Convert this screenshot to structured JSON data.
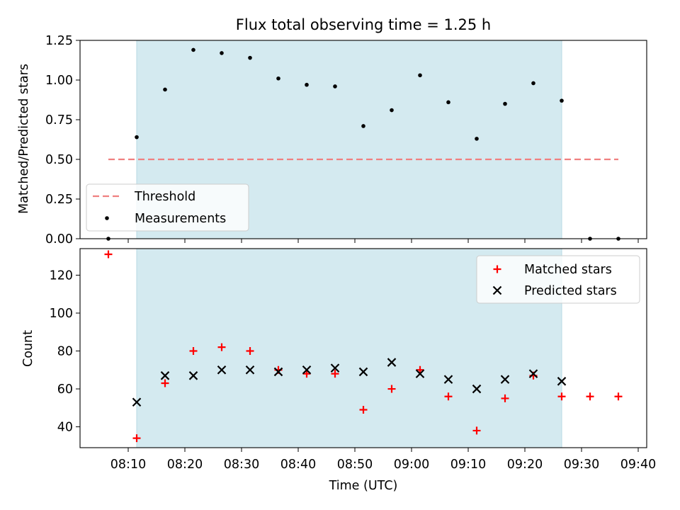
{
  "title": "Flux total observing time = 1.25 h",
  "colors": {
    "observing_span": "#d4eaf0",
    "threshold": "#f08080",
    "measurements": "#000000",
    "matched": "#ff0000",
    "predicted": "#000000"
  },
  "chart_data": [
    {
      "type": "scatter",
      "ylabel": "Matched/Predicted stars",
      "ylim": [
        0,
        1.25
      ],
      "yticks": [
        0,
        0.25,
        0.5,
        0.75,
        1.0,
        1.25
      ],
      "ytick_labels": [
        "0.00",
        "0.25",
        "0.50",
        "0.75",
        "1.00",
        "1.25"
      ],
      "xlim": [
        "08:01:30",
        "09:41:30"
      ],
      "shared_x": true,
      "shaded_span": [
        "08:11:30",
        "09:26:30"
      ],
      "legend_position": "lower-left",
      "threshold": {
        "name": "Threshold",
        "y": 0.5,
        "x": [
          "08:06:30",
          "09:36:30"
        ],
        "style": "dashed"
      },
      "series": [
        {
          "name": "Measurements",
          "marker": "dot",
          "x": [
            "08:06:30",
            "08:11:30",
            "08:16:30",
            "08:21:30",
            "08:26:30",
            "08:31:30",
            "08:36:30",
            "08:41:30",
            "08:46:30",
            "08:51:30",
            "08:56:30",
            "09:01:30",
            "09:06:30",
            "09:11:30",
            "09:16:30",
            "09:21:30",
            "09:26:30",
            "09:31:30",
            "09:36:30"
          ],
          "y": [
            0.0,
            0.64,
            0.94,
            1.19,
            1.17,
            1.14,
            1.01,
            0.97,
            0.96,
            0.71,
            0.81,
            1.03,
            0.86,
            0.63,
            0.85,
            0.98,
            0.87,
            0.0,
            0.0
          ]
        }
      ]
    },
    {
      "type": "scatter",
      "ylabel": "Count",
      "xlabel": "Time (UTC)",
      "ylim": [
        29,
        134
      ],
      "yticks": [
        40,
        60,
        80,
        100,
        120
      ],
      "ytick_labels": [
        "40",
        "60",
        "80",
        "100",
        "120"
      ],
      "xlim": [
        "08:01:30",
        "09:41:30"
      ],
      "xticks": [
        "08:10",
        "08:20",
        "08:30",
        "08:40",
        "08:50",
        "09:00",
        "09:10",
        "09:20",
        "09:30",
        "09:40"
      ],
      "shaded_span": [
        "08:11:30",
        "09:26:30"
      ],
      "legend_position": "upper-right",
      "series": [
        {
          "name": "Matched stars",
          "marker": "plus",
          "x": [
            "08:06:30",
            "08:11:30",
            "08:16:30",
            "08:21:30",
            "08:26:30",
            "08:31:30",
            "08:36:30",
            "08:41:30",
            "08:46:30",
            "08:51:30",
            "08:56:30",
            "09:01:30",
            "09:06:30",
            "09:11:30",
            "09:16:30",
            "09:21:30",
            "09:26:30",
            "09:31:30",
            "09:36:30"
          ],
          "y": [
            131,
            34,
            63,
            80,
            82,
            80,
            70,
            68,
            68,
            49,
            60,
            70,
            56,
            38,
            55,
            67,
            56,
            56,
            56
          ]
        },
        {
          "name": "Predicted stars",
          "marker": "x",
          "x": [
            "08:11:30",
            "08:16:30",
            "08:21:30",
            "08:26:30",
            "08:31:30",
            "08:36:30",
            "08:41:30",
            "08:46:30",
            "08:51:30",
            "08:56:30",
            "09:01:30",
            "09:06:30",
            "09:11:30",
            "09:16:30",
            "09:21:30",
            "09:26:30"
          ],
          "y": [
            53,
            67,
            67,
            70,
            70,
            69,
            70,
            71,
            69,
            74,
            68,
            65,
            60,
            65,
            68,
            64
          ]
        }
      ]
    }
  ]
}
